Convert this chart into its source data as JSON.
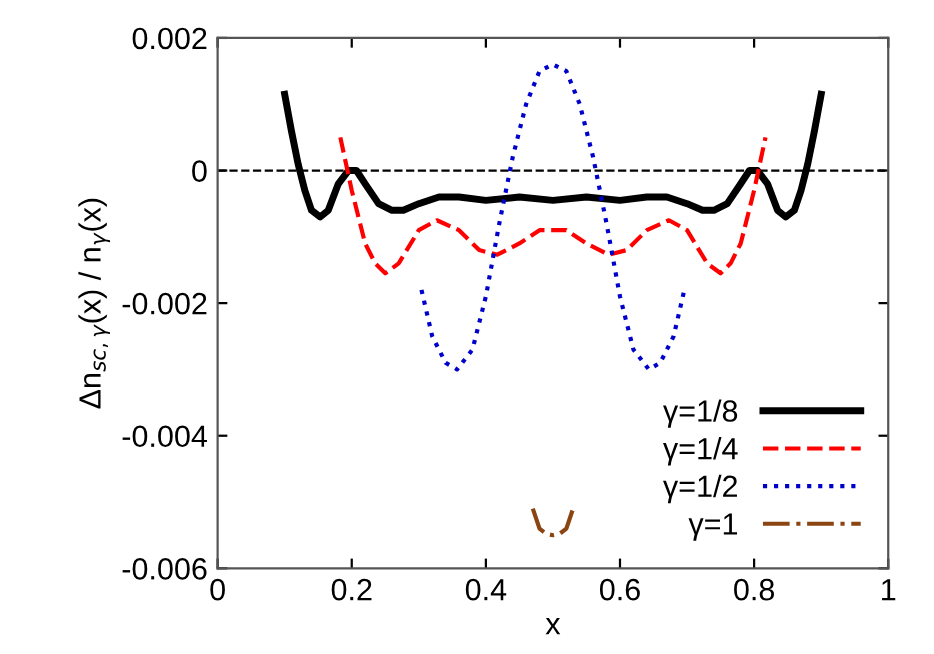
{
  "chart_data": {
    "type": "line",
    "xlabel": "x",
    "ylabel": "Δn$_{sc,γ}$(x) / n$_{γ}$(x)",
    "xlim": [
      0,
      1
    ],
    "ylim": [
      -0.006,
      0.002
    ],
    "xticks": [
      0,
      0.2,
      0.4,
      0.6,
      0.8,
      1
    ],
    "yticks": [
      {
        "value": -0.006,
        "label": "-0.006"
      },
      {
        "value": -0.004,
        "label": "-0.004"
      },
      {
        "value": -0.002,
        "label": "-0.002"
      },
      0,
      {
        "value": 0.002,
        "label": "0.002"
      }
    ],
    "grid": false,
    "legend": "bottom right",
    "marker": "none",
    "ref_lines": [
      {
        "axis": "y",
        "value": 0,
        "color": "#000000",
        "line_style": "dashed"
      }
    ],
    "series": [
      {
        "name": "γ=1/8",
        "color": "#000000",
        "line_style": "solid",
        "x": [
          0.1,
          0.11,
          0.12,
          0.13,
          0.14,
          0.153,
          0.165,
          0.18,
          0.195,
          0.207,
          0.22,
          0.24,
          0.26,
          0.277,
          0.3,
          0.33,
          0.36,
          0.4,
          0.45,
          0.5,
          0.55,
          0.6,
          0.64,
          0.67,
          0.7,
          0.723,
          0.74,
          0.76,
          0.78,
          0.793,
          0.805,
          0.82,
          0.835,
          0.847,
          0.86,
          0.87,
          0.88,
          0.89,
          0.9
        ],
        "values": [
          0.00115,
          0.0006,
          0.0001,
          -0.0003,
          -0.0006,
          -0.0007,
          -0.0006,
          -0.0002,
          0.0,
          0.0,
          -0.0002,
          -0.0005,
          -0.0006,
          -0.0006,
          -0.0005,
          -0.0004,
          -0.0004,
          -0.00045,
          -0.0004,
          -0.00045,
          -0.0004,
          -0.00045,
          -0.0004,
          -0.0004,
          -0.0005,
          -0.0006,
          -0.0006,
          -0.0005,
          -0.0002,
          0.0,
          0.0,
          -0.0002,
          -0.0006,
          -0.0007,
          -0.0006,
          -0.0003,
          0.0001,
          0.0006,
          0.00115
        ]
      },
      {
        "name": "γ=1/4",
        "color": "#ff0000",
        "line_style": "dashed",
        "x": [
          0.183,
          0.2,
          0.22,
          0.235,
          0.25,
          0.27,
          0.3,
          0.327,
          0.36,
          0.39,
          0.417,
          0.45,
          0.48,
          0.5,
          0.52,
          0.55,
          0.583,
          0.61,
          0.64,
          0.673,
          0.7,
          0.73,
          0.75,
          0.765,
          0.78,
          0.8,
          0.817
        ],
        "values": [
          0.0005,
          -0.0003,
          -0.0011,
          -0.0014,
          -0.00155,
          -0.0014,
          -0.0009,
          -0.00075,
          -0.0009,
          -0.0012,
          -0.00127,
          -0.0011,
          -0.0009,
          -0.0009,
          -0.0009,
          -0.0011,
          -0.00127,
          -0.0012,
          -0.0009,
          -0.00075,
          -0.0009,
          -0.0014,
          -0.00155,
          -0.0014,
          -0.0011,
          -0.0003,
          0.0005
        ]
      },
      {
        "name": "γ=1/2",
        "color": "#0000cc",
        "line_style": "dotted",
        "x": [
          0.304,
          0.32,
          0.34,
          0.357,
          0.38,
          0.4,
          0.42,
          0.44,
          0.46,
          0.48,
          0.5,
          0.52,
          0.54,
          0.56,
          0.58,
          0.6,
          0.62,
          0.643,
          0.66,
          0.68,
          0.696
        ],
        "values": [
          -0.0018,
          -0.0025,
          -0.0029,
          -0.003,
          -0.0027,
          -0.0019,
          -0.0008,
          0.0002,
          0.001,
          0.0015,
          0.0016,
          0.0015,
          0.001,
          0.0002,
          -0.0008,
          -0.0019,
          -0.0027,
          -0.003,
          -0.0029,
          -0.0025,
          -0.0018
        ]
      },
      {
        "name": "γ=1",
        "color": "#8b4513",
        "line_style": "dashdot",
        "x": [
          0.47,
          0.48,
          0.49,
          0.5,
          0.51,
          0.52,
          0.53
        ],
        "values": [
          -0.0051,
          -0.0054,
          -0.00548,
          -0.0055,
          -0.00548,
          -0.0054,
          -0.0051
        ]
      }
    ]
  }
}
